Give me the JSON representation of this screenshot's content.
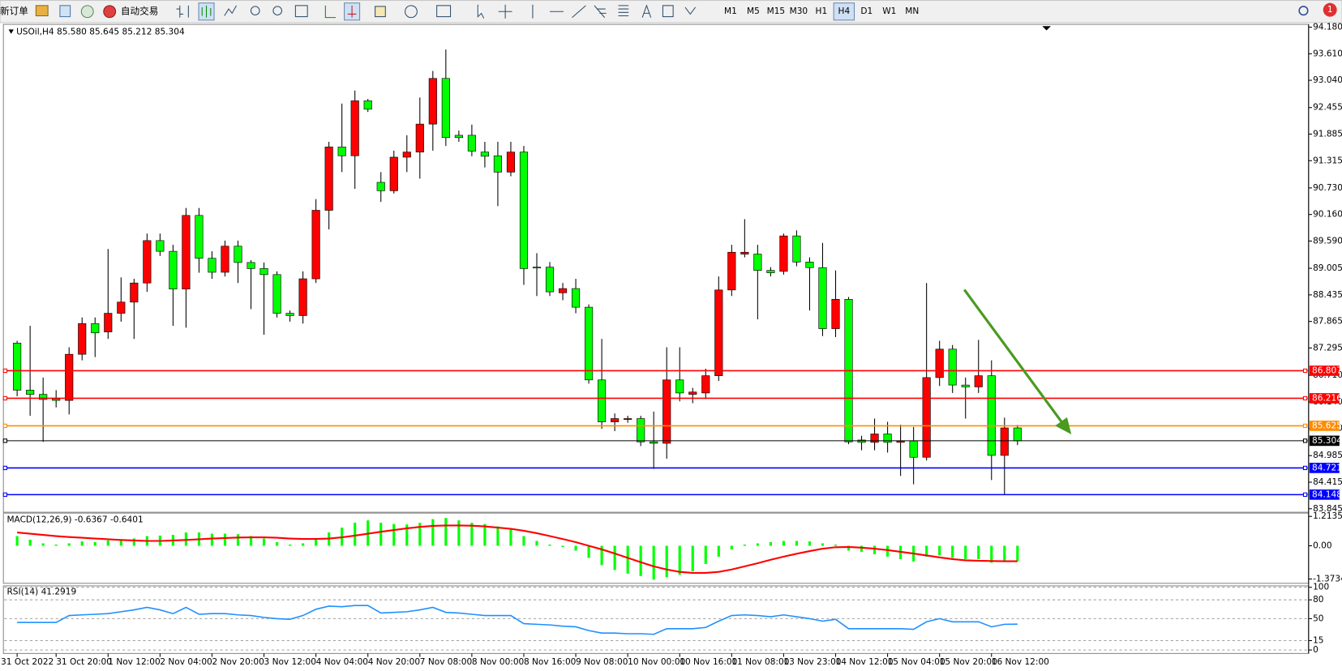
{
  "toolbar": {
    "new_order": "新订单",
    "auto_trading": "自动交易",
    "timeframes": [
      "M1",
      "M5",
      "M15",
      "M30",
      "H1",
      "H4",
      "D1",
      "W1",
      "MN"
    ],
    "active_timeframe": "H4",
    "alert_count": "1"
  },
  "chart_data": [
    {
      "type": "candlestick",
      "title": "USOil,H4 85.580 85.645 85.212 85.304",
      "up_color": "#ff0000",
      "down_color": "#00ff00",
      "categories": [
        "31 Oct 2022",
        null,
        null,
        "31 Oct 20:00",
        null,
        null,
        null,
        "1 Nov 12:00",
        null,
        null,
        null,
        "2 Nov 04:00",
        null,
        null,
        null,
        "2 Nov 20:00",
        null,
        null,
        null,
        "3 Nov 12:00",
        null,
        null,
        null,
        "4 Nov 04:00",
        null,
        null,
        null,
        "4 Nov 20:00",
        null,
        null,
        null,
        "7 Nov 08:00",
        null,
        null,
        null,
        "8 Nov 00:00",
        null,
        null,
        null,
        "8 Nov 16:00",
        null,
        null,
        null,
        "9 Nov 08:00",
        null,
        null,
        null,
        "10 Nov 00:00",
        null,
        null,
        null,
        "10 Nov 16:00",
        null,
        null,
        null,
        "11 Nov 08:00",
        null,
        null,
        null,
        "13 Nov 23:00",
        null,
        null,
        null,
        "14 Nov 12:00",
        null,
        null,
        null,
        "15 Nov 04:00",
        null,
        null,
        null,
        "15 Nov 20:00",
        null,
        null,
        null,
        "16 Nov 12:00",
        null,
        null
      ],
      "open": [
        87.4,
        86.39,
        86.3,
        86.2,
        86.17,
        87.16,
        87.82,
        87.64,
        88.04,
        88.28,
        88.69,
        89.6,
        89.37,
        88.56,
        90.14,
        89.22,
        88.92,
        89.48,
        89.13,
        89.0,
        88.87,
        88.04,
        87.99,
        88.78,
        90.25,
        91.61,
        91.42,
        92.6,
        90.85,
        90.67,
        91.39,
        91.5,
        92.1,
        93.08,
        91.86,
        91.86,
        91.5,
        91.42,
        91.07,
        91.5,
        89.03,
        89.03,
        88.48,
        88.57,
        88.17,
        86.61,
        85.71,
        85.76,
        85.78,
        85.28,
        85.25,
        86.61,
        86.3,
        86.33,
        86.7,
        88.54,
        89.31,
        89.31,
        88.96,
        88.94,
        89.7,
        89.14,
        89.02,
        87.71,
        88.34,
        85.32,
        85.27,
        85.45,
        85.27,
        85.3,
        84.95,
        86.66,
        87.27,
        86.5,
        86.46,
        86.7,
        84.99,
        85.58
      ],
      "high": [
        87.45,
        87.77,
        86.66,
        86.39,
        87.31,
        87.95,
        87.95,
        89.42,
        88.81,
        88.78,
        89.75,
        89.75,
        89.51,
        90.3,
        90.3,
        89.37,
        89.6,
        89.6,
        89.18,
        89.13,
        88.94,
        88.1,
        88.94,
        90.49,
        91.72,
        92.54,
        92.82,
        92.64,
        91.07,
        91.53,
        91.86,
        92.67,
        93.24,
        93.7,
        91.96,
        92.09,
        91.72,
        91.72,
        91.72,
        91.63,
        89.33,
        89.14,
        88.69,
        88.78,
        88.23,
        87.49,
        85.89,
        85.84,
        85.84,
        85.93,
        87.31,
        87.31,
        86.44,
        86.85,
        88.83,
        89.51,
        90.06,
        89.51,
        89.03,
        89.75,
        89.82,
        89.24,
        89.55,
        88.96,
        88.39,
        85.41,
        85.78,
        85.71,
        85.65,
        85.6,
        88.69,
        87.45,
        87.36,
        86.66,
        87.47,
        87.03,
        85.8,
        85.645
      ],
      "low": [
        86.26,
        85.84,
        85.28,
        86.02,
        85.87,
        87.03,
        87.1,
        87.49,
        87.86,
        87.49,
        88.5,
        89.27,
        87.77,
        87.73,
        88.91,
        88.78,
        88.83,
        88.69,
        88.13,
        87.58,
        87.95,
        87.86,
        87.82,
        88.69,
        89.84,
        91.07,
        90.71,
        92.36,
        90.43,
        90.61,
        91.07,
        90.93,
        91.53,
        91.63,
        91.72,
        91.41,
        91.17,
        90.34,
        90.98,
        88.65,
        88.41,
        88.41,
        88.32,
        88.04,
        86.53,
        85.56,
        85.51,
        85.69,
        85.19,
        84.7,
        84.92,
        86.15,
        86.11,
        86.2,
        86.59,
        88.41,
        89.24,
        87.91,
        88.83,
        88.87,
        89.05,
        88.1,
        87.55,
        87.53,
        85.23,
        85.1,
        85.1,
        85.05,
        84.55,
        84.37,
        84.88,
        86.48,
        86.33,
        85.78,
        86.33,
        84.46,
        84.15,
        85.212
      ],
      "close": [
        86.39,
        86.3,
        86.19,
        86.17,
        87.16,
        87.82,
        87.62,
        88.04,
        88.28,
        88.69,
        89.6,
        89.37,
        88.56,
        90.14,
        89.22,
        88.92,
        89.48,
        89.13,
        89.0,
        88.87,
        88.04,
        87.99,
        88.78,
        90.25,
        91.61,
        91.42,
        92.6,
        92.42,
        90.67,
        91.39,
        91.5,
        92.1,
        93.08,
        91.81,
        91.81,
        91.52,
        91.41,
        91.07,
        91.5,
        89.0,
        89.02,
        88.5,
        88.57,
        88.17,
        86.61,
        85.71,
        85.78,
        85.78,
        85.28,
        85.25,
        86.61,
        86.33,
        86.35,
        86.7,
        88.54,
        89.35,
        89.35,
        88.96,
        88.91,
        89.7,
        89.14,
        89.02,
        87.71,
        88.34,
        85.28,
        85.27,
        85.45,
        85.27,
        85.3,
        84.95,
        86.66,
        87.27,
        86.5,
        86.46,
        86.7,
        84.99,
        85.58,
        85.304
      ],
      "ylim": [
        83.77,
        94.24
      ],
      "yticks": [
        {
          "value": 94.18,
          "label": "94.180"
        },
        {
          "value": 93.61,
          "label": "93.610"
        },
        {
          "value": 93.04,
          "label": "93.040"
        },
        {
          "value": 92.455,
          "label": "92.455"
        },
        {
          "value": 91.885,
          "label": "91.885"
        },
        {
          "value": 91.315,
          "label": "91.315"
        },
        {
          "value": 90.73,
          "label": "90.730"
        },
        {
          "value": 90.16,
          "label": "90.160"
        },
        {
          "value": 89.59,
          "label": "89.590"
        },
        {
          "value": 89.005,
          "label": "89.005"
        },
        {
          "value": 88.435,
          "label": "88.435"
        },
        {
          "value": 87.865,
          "label": "87.865"
        },
        {
          "value": 87.295,
          "label": "87.295"
        },
        {
          "value": 86.71,
          "label": "86.710"
        },
        {
          "value": 86.14,
          "label": "86.140"
        },
        {
          "value": 85.57,
          "label": "85.570"
        },
        {
          "value": 84.985,
          "label": "84.985"
        },
        {
          "value": 84.415,
          "label": "84.415"
        },
        {
          "value": 83.845,
          "label": "83.845"
        }
      ],
      "hlines": [
        {
          "value": 86.807,
          "color": "#ff0000"
        },
        {
          "value": 86.216,
          "color": "#ff0000"
        },
        {
          "value": 85.625,
          "color": "#ff8c00"
        },
        {
          "value": 85.304,
          "color": "#000000"
        },
        {
          "value": 84.721,
          "color": "#0000ff"
        },
        {
          "value": 84.148,
          "color": "#0000ff"
        }
      ]
    },
    {
      "type": "macd",
      "title": "MACD(12,26,9) -0.6367 -0.6401",
      "histogram": {
        "color": "#00ff00",
        "values": [
          0.4,
          0.25,
          0.1,
          0.05,
          0.1,
          0.18,
          0.15,
          0.22,
          0.25,
          0.3,
          0.4,
          0.42,
          0.45,
          0.55,
          0.55,
          0.5,
          0.5,
          0.48,
          0.4,
          0.3,
          0.15,
          0.05,
          0.1,
          0.3,
          0.55,
          0.75,
          0.95,
          1.05,
          0.95,
          0.9,
          0.88,
          0.95,
          1.1,
          1.15,
          1.05,
          0.95,
          0.9,
          0.8,
          0.7,
          0.4,
          0.2,
          0.05,
          -0.05,
          -0.2,
          -0.5,
          -0.8,
          -1.0,
          -1.15,
          -1.25,
          -1.4,
          -1.3,
          -1.2,
          -1.05,
          -0.75,
          -0.45,
          -0.15,
          0.05,
          0.1,
          0.15,
          0.2,
          0.2,
          0.18,
          0.1,
          0.05,
          -0.2,
          -0.25,
          -0.35,
          -0.45,
          -0.55,
          -0.65,
          -0.45,
          -0.4,
          -0.5,
          -0.55,
          -0.55,
          -0.7,
          -0.65,
          -0.6367
        ]
      },
      "signal": {
        "color": "#ff0000",
        "values": [
          0.55,
          0.5,
          0.45,
          0.4,
          0.36,
          0.33,
          0.3,
          0.27,
          0.24,
          0.22,
          0.2,
          0.2,
          0.22,
          0.24,
          0.27,
          0.3,
          0.32,
          0.34,
          0.35,
          0.35,
          0.33,
          0.3,
          0.28,
          0.28,
          0.3,
          0.35,
          0.42,
          0.5,
          0.58,
          0.65,
          0.72,
          0.78,
          0.82,
          0.84,
          0.84,
          0.83,
          0.8,
          0.75,
          0.7,
          0.62,
          0.52,
          0.4,
          0.28,
          0.15,
          0.0,
          -0.15,
          -0.32,
          -0.5,
          -0.68,
          -0.85,
          -0.98,
          -1.08,
          -1.12,
          -1.12,
          -1.08,
          -0.98,
          -0.85,
          -0.72,
          -0.58,
          -0.45,
          -0.33,
          -0.22,
          -0.12,
          -0.06,
          -0.05,
          -0.08,
          -0.12,
          -0.18,
          -0.25,
          -0.32,
          -0.4,
          -0.48,
          -0.55,
          -0.6,
          -0.62,
          -0.63,
          -0.64,
          -0.6401
        ]
      },
      "ylim": [
        -1.55,
        1.35
      ],
      "yticks": [
        1.2135,
        {
          "value": 0,
          "label": "0.00"
        },
        -1.3734
      ]
    },
    {
      "type": "rsi",
      "title": "RSI(14) 41.2919",
      "color": "#1e90ff",
      "values": [
        44,
        44,
        44,
        44,
        55,
        56,
        57,
        58,
        61,
        64,
        68,
        64,
        58,
        68,
        57,
        58,
        58,
        56,
        55,
        52,
        50,
        49,
        55,
        65,
        70,
        69,
        71,
        71,
        59,
        60,
        61,
        64,
        68,
        60,
        59,
        57,
        55,
        55,
        55,
        42,
        41,
        40,
        38,
        37,
        31,
        27,
        27,
        26,
        26,
        25,
        34,
        34,
        34,
        36,
        46,
        55,
        56,
        55,
        53,
        56,
        53,
        50,
        46,
        49,
        34,
        34,
        34,
        34,
        34,
        33,
        45,
        50,
        45,
        45,
        45,
        37,
        41,
        41.2919
      ],
      "ylim": [
        -5.5,
        102.3
      ],
      "yticks": [
        100,
        80,
        50,
        15,
        0
      ],
      "grid": true
    }
  ]
}
